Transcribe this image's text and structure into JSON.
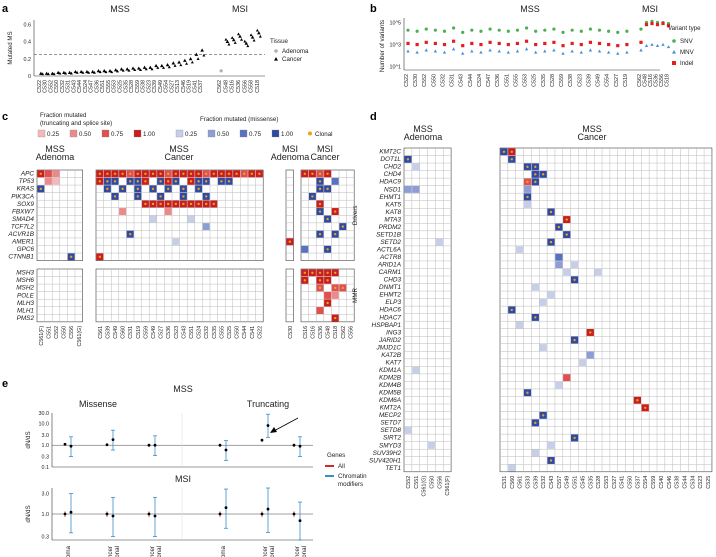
{
  "colors": {
    "adenoma": "#b0b0b0",
    "cancer": "#000000",
    "snv": "#4caf50",
    "mnv": "#4a90d9",
    "indel": "#e02020",
    "trunc": [
      "#f4b8b8",
      "#ec8a8a",
      "#e05050",
      "#c81e1e"
    ],
    "missense": [
      "#c6cee8",
      "#8d9ed6",
      "#5a70c0",
      "#2f4aa0"
    ],
    "clonal": "#f0a020",
    "all": "#d62728",
    "chrom": "#3b8fc5"
  },
  "chart_data": [
    {
      "id": "a",
      "type": "scatter",
      "panel_label": "a",
      "ylabel": "Mutated MS",
      "group_labels": [
        "MSS",
        "MSI"
      ],
      "yticks": [
        "0",
        "0.2",
        "0.4",
        "0.6"
      ],
      "ylim": [
        0,
        0.65
      ],
      "threshold": 0.25,
      "legend_title": "Tissue",
      "legend": [
        "Adenoma",
        "Cancer"
      ],
      "mss_samples": [
        "C522",
        "C530",
        "C552",
        "C550",
        "C532",
        "C531",
        "C543",
        "C544",
        "C524",
        "C547",
        "C536",
        "C551",
        "C555",
        "C553",
        "C525",
        "C535",
        "C528",
        "C559",
        "C538",
        "C523",
        "C539",
        "C549",
        "C554",
        "C527",
        "C513",
        "C546",
        "C519",
        "C541",
        "C537"
      ],
      "mss_values": [
        0.03,
        0.03,
        0.03,
        0.04,
        0.04,
        0.04,
        0.05,
        0.05,
        0.05,
        0.05,
        0.06,
        0.06,
        0.06,
        0.07,
        0.08,
        0.08,
        0.09,
        0.09,
        0.1,
        0.1,
        0.12,
        0.12,
        0.13,
        0.15,
        0.16,
        0.18,
        0.2,
        0.25,
        0.3
      ],
      "msi_samples": [
        "C562",
        "C548",
        "C516",
        "C536",
        "C556",
        "C558",
        "C518"
      ],
      "msi_values": [
        0.06,
        0.4,
        0.42,
        0.46,
        0.38,
        0.45,
        0.5
      ]
    },
    {
      "id": "b",
      "type": "scatter",
      "panel_label": "b",
      "ylabel": "Number of variants",
      "yticks": [
        "10^1",
        "10^3",
        "10^5"
      ],
      "group_labels": [
        "MSS",
        "MSI"
      ],
      "legend_title": "Variant type",
      "legend": [
        "SNV",
        "MNV",
        "Indel"
      ],
      "mss_samples": [
        "C522",
        "C530",
        "C552",
        "C550",
        "C532",
        "C531",
        "C543",
        "C544",
        "C524",
        "C547",
        "C536",
        "C551",
        "C555",
        "C553",
        "C525",
        "C535",
        "C528",
        "C559",
        "C538",
        "C523",
        "C539",
        "C549",
        "C554",
        "C527",
        "C519"
      ],
      "msi_samples": [
        "C562",
        "C548",
        "C516",
        "C536",
        "C556",
        "C518"
      ],
      "snv_log10": [
        4.3,
        4.2,
        4.4,
        4.3,
        4.2,
        4.5,
        4.1,
        4.3,
        4.2,
        4.4,
        4.3,
        4.2,
        4.3,
        4.5,
        4.2,
        4.3,
        4.4,
        4.1,
        4.3,
        4.2,
        4.4,
        4.3,
        4.2,
        4.1,
        4.2,
        4.4,
        5.0,
        5.1,
        5.0,
        5.0,
        4.9
      ],
      "indel_log10": [
        3.1,
        3.0,
        3.2,
        3.1,
        3.0,
        3.3,
        2.9,
        3.1,
        3.0,
        3.2,
        3.1,
        3.0,
        3.1,
        3.3,
        3.0,
        3.1,
        3.2,
        2.9,
        3.1,
        3.0,
        3.2,
        3.1,
        3.0,
        2.9,
        3.0,
        3.2,
        4.8,
        4.9,
        4.8,
        4.9,
        4.7
      ],
      "mnv_log10": [
        2.4,
        2.3,
        2.5,
        2.4,
        2.3,
        2.6,
        2.2,
        2.4,
        2.3,
        2.5,
        2.4,
        2.3,
        2.4,
        2.6,
        2.3,
        2.4,
        2.5,
        2.2,
        2.4,
        2.3,
        2.5,
        2.4,
        2.3,
        2.2,
        2.3,
        2.5,
        2.9,
        3.0,
        2.9,
        3.0,
        2.8
      ]
    },
    {
      "id": "c",
      "type": "heatmap",
      "panel_label": "c",
      "legend_trunc_title": "Fraction mutated",
      "legend_trunc_sub": "(truncating and splice site)",
      "legend_miss_title": "Fraction mutated (missense)",
      "legend_values": [
        "0.25",
        "0.50",
        "0.75",
        "1.00"
      ],
      "legend_clonal": "Clonal",
      "group_titles": [
        "MSS\nAdenoma",
        "MSS\nCancer",
        "MSI\nAdenoma",
        "MSI\nCancer"
      ],
      "side_labels": [
        "Drivers",
        "MMR"
      ],
      "drivers": [
        "APC",
        "TP53",
        "KRAS",
        "PIK3CA",
        "SOX9",
        "FBXW7",
        "SMAD4",
        "TCF7L2",
        "ACVR1B",
        "AMER1",
        "GPC6",
        "CTNNB1"
      ],
      "mmr": [
        "MSH3",
        "MSH6",
        "MSH2",
        "POLE",
        "MLH3",
        "MLH1",
        "PMS2"
      ],
      "samples": [
        "C561(F)",
        "C551",
        "C552",
        "C550",
        "C556",
        "C561(G)",
        "C561",
        "C539",
        "C549",
        "C560",
        "C531",
        "C519",
        "C559",
        "C549",
        "C527",
        "C536",
        "C523",
        "C543",
        "C551",
        "C524",
        "C532",
        "C535",
        "C555",
        "C525",
        "C550",
        "C544",
        "C541",
        "C522",
        "C530",
        "C516",
        "C516",
        "C536",
        "C548",
        "C518",
        "C562",
        "C556"
      ]
    },
    {
      "id": "d",
      "type": "heatmap",
      "panel_label": "d",
      "group_titles": [
        "MSS\nAdenoma",
        "MSS\nCancer"
      ],
      "genes": [
        "KMT2C",
        "DOT1L",
        "CHD2",
        "CHD4",
        "HDAC9",
        "NSD1",
        "EHMT1",
        "KAT5",
        "KAT8",
        "MTA3",
        "PRDM2",
        "SETD1B",
        "SETD2",
        "ACTL6A",
        "ACTR8",
        "ARID1A",
        "CARM1",
        "CHD3",
        "DNMT1",
        "EHMT2",
        "ELP3",
        "HDAC6",
        "HDAC7",
        "HSPBAP1",
        "ING3",
        "JARID2",
        "JMJD1C",
        "KAT2B",
        "KAT7",
        "KDM1A",
        "KDM2B",
        "KDM4B",
        "KDM5B",
        "KDM6A",
        "KMT2A",
        "MECP2",
        "SETD7",
        "SETD8",
        "SIRT2",
        "SMYD3",
        "SUV39H2",
        "SUV420H1",
        "TET1"
      ],
      "samples": [
        "C552",
        "C551",
        "C561(G)",
        "C550",
        "C556",
        "C561(F)",
        "C531",
        "C560",
        "C561",
        "C533",
        "C539",
        "C532",
        "C543",
        "C557",
        "C549",
        "C551",
        "C545",
        "C535",
        "C528",
        "C553",
        "C527",
        "C541",
        "C550",
        "C537",
        "C554",
        "C559",
        "C540",
        "C546",
        "C538",
        "C544",
        "C534",
        "C523",
        "C525",
        "C524",
        "C522",
        "C526",
        "C547"
      ]
    },
    {
      "id": "e",
      "type": "scatter",
      "panel_label": "e",
      "row_titles": [
        "MSS",
        "MSI"
      ],
      "col_titles": [
        "Missense",
        "Truncating"
      ],
      "ylabel": "dN/dS",
      "yticks_mss": [
        "0.1",
        "0.3",
        "1.0",
        "3.0",
        "10.0",
        "30.0"
      ],
      "yticks_msi": [
        "0.3",
        "1.0",
        "3.0"
      ],
      "xcats": [
        "Adenoma",
        "Cancer clonal",
        "Cancer subclonal"
      ],
      "legend_title": "Genes",
      "legend": [
        "All",
        "Chromatin modifiers"
      ],
      "mss_missense_all": [
        1.1,
        1.05,
        1.0
      ],
      "mss_missense_chrom": [
        0.9,
        1.8,
        1.0
      ],
      "mss_trunc_all": [
        1.0,
        1.7,
        1.0
      ],
      "mss_trunc_chrom": [
        0.6,
        8.0,
        0.9
      ],
      "msi_missense_all": [
        1.0,
        1.0,
        1.0
      ],
      "msi_missense_chrom": [
        1.1,
        0.9,
        0.9
      ],
      "msi_trunc_all": [
        1.0,
        1.0,
        1.0
      ],
      "msi_trunc_chrom": [
        1.4,
        1.3,
        0.7
      ]
    }
  ]
}
